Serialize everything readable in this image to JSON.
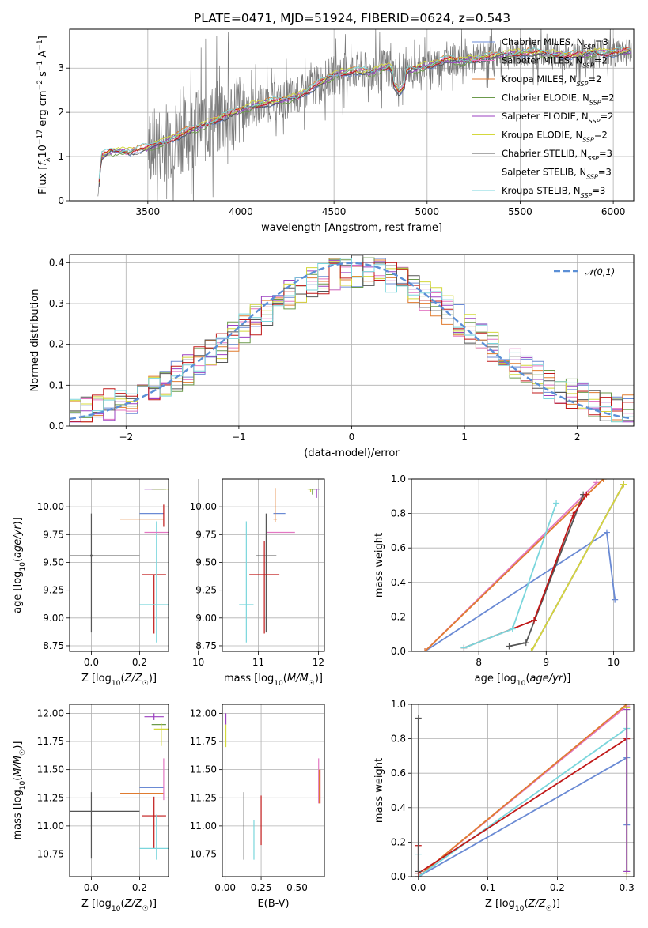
{
  "chart_data": [
    {
      "type": "line",
      "title": "PLATE=0471, MJD=51924, FIBERID=0624, z=0.543",
      "xlabel": "wavelength [Angstrom, rest frame]",
      "ylabel": "Flux [f_λ 10^-17 erg cm^-2 s^-1 A^-1]",
      "xlim": [
        3080,
        6110
      ],
      "ylim": [
        0,
        3.88
      ],
      "xticks": [
        "3500",
        "4000",
        "4500",
        "5000",
        "5500",
        "6000"
      ],
      "yticks": [
        "0",
        "1",
        "2",
        "3"
      ],
      "legend": "top-right",
      "observed": {
        "x": [
          3230,
          3240,
          3250,
          3300,
          3400,
          3500,
          3600,
          3700,
          3800,
          3900,
          4000,
          4100,
          4200,
          4300,
          4400,
          4500,
          4600,
          4700,
          4800,
          4850,
          4900,
          5000,
          5100,
          5200,
          5300,
          5400,
          5500,
          5600,
          5700,
          5800,
          5900,
          6000,
          6100
        ],
        "y": [
          0,
          0.5,
          1.0,
          1.12,
          1.12,
          1.2,
          1.35,
          1.55,
          1.7,
          1.9,
          2.05,
          2.2,
          2.25,
          2.35,
          2.6,
          2.85,
          2.95,
          2.9,
          3.05,
          2.7,
          2.95,
          3.05,
          3.2,
          3.15,
          3.25,
          3.3,
          3.35,
          3.35,
          3.3,
          3.3,
          3.35,
          3.35,
          3.4
        ]
      },
      "series": [
        {
          "name": "Chabrier MILES, N_SSP=3",
          "color": "#6a8ad4"
        },
        {
          "name": "Salpeter MILES, N_SSP=2",
          "color": "#e377c2"
        },
        {
          "name": "Kroupa MILES, N_SSP=2",
          "color": "#e07b2f"
        },
        {
          "name": "Chabrier ELODIE, N_SSP=2",
          "color": "#6b9a4b"
        },
        {
          "name": "Salpeter ELODIE, N_SSP=2",
          "color": "#9b40c0"
        },
        {
          "name": "Kroupa ELODIE, N_SSP=2",
          "color": "#d4d83c"
        },
        {
          "name": "Chabrier STELIB, N_SSP=3",
          "color": "#555555"
        },
        {
          "name": "Salpeter STELIB, N_SSP=3",
          "color": "#c01818"
        },
        {
          "name": "Kroupa STELIB, N_SSP=3",
          "color": "#7ad6dc"
        }
      ]
    },
    {
      "type": "line",
      "xlabel": "(data-model)/error",
      "ylabel": "Normed distribution",
      "xlim": [
        -2.5,
        2.5
      ],
      "ylim": [
        0,
        0.42
      ],
      "xticks": [
        "−2",
        "−1",
        "0",
        "1",
        "2"
      ],
      "yticks": [
        "0.0",
        "0.1",
        "0.2",
        "0.3",
        "0.4"
      ],
      "legend": "top-right",
      "reference_curve": {
        "name": "𝒩(0,1)",
        "color": "#5b8fd6"
      },
      "histogram_bin_width": 0.1
    },
    {
      "type": "scatter",
      "xlabel": "Z [log10(Z/Z☉)]",
      "ylabel": "age  [log10(age/yr)]",
      "xlim": [
        -0.09,
        0.32
      ],
      "ylim": [
        8.7,
        10.25
      ],
      "xticks": [
        "0.0",
        "0.2"
      ],
      "yticks": [
        "8.75",
        "9.00",
        "9.25",
        "9.50",
        "9.75",
        "10.00"
      ],
      "points": [
        {
          "color": "#555555",
          "x": 0.0,
          "xerr": 0.08,
          "y": 9.56,
          "yerr": [
            0.69,
            0.38
          ]
        },
        {
          "color": "#555555",
          "x": 0.0,
          "xerr": 0.0,
          "y": 9.56,
          "yerr": [
            0,
            0
          ]
        },
        {
          "color": "#555555",
          "x": 0.0,
          "xerr": 0.2,
          "y": 9.56,
          "yerr": [
            0,
            0
          ]
        },
        {
          "color": "#c01818",
          "x": 0.26,
          "xerr": 0.05,
          "y": 9.39,
          "yerr": [
            0.53,
            0
          ]
        },
        {
          "color": "#7ad6dc",
          "x": 0.27,
          "xerr": 0.07,
          "y": 9.12,
          "yerr": [
            0.34,
            0.75
          ]
        },
        {
          "color": "#e377c2",
          "x": 0.28,
          "xerr": 0.06,
          "y": 9.77,
          "yerr": [
            0,
            0
          ]
        },
        {
          "color": "#6a8ad4",
          "x": 0.25,
          "xerr": 0.05,
          "y": 9.94,
          "yerr": [
            0,
            0
          ]
        },
        {
          "color": "#e07b2f",
          "x": 0.21,
          "xerr": 0.09,
          "y": 9.89,
          "yerr": [
            0,
            0
          ]
        },
        {
          "color": "#9b40c0",
          "x": 0.26,
          "xerr": 0.04,
          "y": 10.16,
          "yerr": [
            0,
            0
          ]
        },
        {
          "color": "#d4d83c",
          "x": 0.29,
          "xerr": 0.03,
          "y": 10.16,
          "yerr": [
            0,
            0
          ]
        },
        {
          "color": "#6b9a4b",
          "x": 0.28,
          "xerr": 0.03,
          "y": 10.16,
          "yerr": [
            0,
            0
          ]
        },
        {
          "color": "#c01818",
          "x": 0.3,
          "xerr": 0,
          "y": 9.92,
          "yerr": [
            0.1,
            0.1
          ]
        }
      ]
    },
    {
      "type": "scatter",
      "xlabel": "mass [log10(M/M☉)]",
      "xlim": [
        10.4,
        12.1
      ],
      "ylim": [
        8.7,
        10.25
      ],
      "xticks": [
        "10",
        "11",
        "12"
      ],
      "yticks": [
        "8.75",
        "9.00",
        "9.25",
        "9.50",
        "9.75",
        "10.00"
      ],
      "points": [
        {
          "color": "#555555",
          "x": 11.13,
          "xerr": 0.17,
          "y": 9.56,
          "yerr": [
            0.69,
            0.38
          ]
        },
        {
          "color": "#c01818",
          "x": 11.1,
          "xerr": 0.25,
          "y": 9.39,
          "yerr": [
            0.53,
            0.3
          ]
        },
        {
          "color": "#7ad6dc",
          "x": 10.8,
          "xerr": 0.12,
          "y": 9.12,
          "yerr": [
            0.34,
            0.75
          ]
        },
        {
          "color": "#6a8ad4",
          "x": 11.35,
          "xerr": 0.1,
          "y": 9.94,
          "yerr": [
            0,
            0
          ]
        },
        {
          "color": "#e377c2",
          "x": 11.38,
          "xerr": 0.23,
          "y": 9.77,
          "yerr": [
            0,
            0
          ]
        },
        {
          "color": "#e07b2f",
          "x": 11.28,
          "xerr": 0.03,
          "y": 9.89,
          "yerr": [
            0.03,
            0.28
          ]
        },
        {
          "color": "#9b40c0",
          "x": 11.97,
          "xerr": 0.05,
          "y": 10.16,
          "yerr": [
            0.08,
            0
          ]
        },
        {
          "color": "#d4d83c",
          "x": 11.87,
          "xerr": 0.05,
          "y": 10.16,
          "yerr": [
            0.03,
            0
          ]
        },
        {
          "color": "#6b9a4b",
          "x": 11.9,
          "xerr": 0.05,
          "y": 10.16,
          "yerr": [
            0.05,
            0
          ]
        }
      ]
    },
    {
      "type": "line",
      "xlabel": "age  [log10(age/yr)]",
      "ylabel": "mass weight",
      "xlim": [
        7.0,
        10.3
      ],
      "ylim": [
        0,
        1.0
      ],
      "xticks": [
        "8",
        "9",
        "10"
      ],
      "yticks": [
        "0.0",
        "0.2",
        "0.4",
        "0.6",
        "0.8",
        "1.0"
      ],
      "series": [
        {
          "color": "#6a8ad4",
          "x": [
            7.2,
            9.9,
            10.02
          ],
          "y": [
            0.0,
            0.69,
            0.3
          ]
        },
        {
          "color": "#e377c2",
          "x": [
            7.2,
            9.75
          ],
          "y": [
            0.0,
            0.98
          ]
        },
        {
          "color": "#e07b2f",
          "x": [
            7.2,
            9.85
          ],
          "y": [
            0.0,
            1.0
          ]
        },
        {
          "color": "#6b9a4b",
          "x": [
            8.78,
            10.15
          ],
          "y": [
            0.0,
            0.97
          ]
        },
        {
          "color": "#9b40c0",
          "x": [
            8.78,
            10.15
          ],
          "y": [
            0.0,
            0.97
          ]
        },
        {
          "color": "#d4d83c",
          "x": [
            8.78,
            10.15
          ],
          "y": [
            0.0,
            0.97
          ]
        },
        {
          "color": "#555555",
          "x": [
            8.45,
            8.7,
            9.55
          ],
          "y": [
            0.03,
            0.05,
            0.91
          ]
        },
        {
          "color": "#c01818",
          "x": [
            7.78,
            8.82,
            9.4,
            9.6
          ],
          "y": [
            0.02,
            0.18,
            0.79,
            0.91
          ]
        },
        {
          "color": "#7ad6dc",
          "x": [
            7.78,
            8.5,
            9.15
          ],
          "y": [
            0.02,
            0.13,
            0.86
          ]
        }
      ]
    },
    {
      "type": "scatter",
      "xlabel": "Z [log10(Z/Z☉)]",
      "ylabel": "mass [log10(M/M☉)]",
      "xlim": [
        -0.09,
        0.32
      ],
      "ylim": [
        10.55,
        12.08
      ],
      "xticks": [
        "0.0",
        "0.2"
      ],
      "yticks": [
        "10.75",
        "11.00",
        "11.25",
        "11.50",
        "11.75",
        "12.00"
      ],
      "points": [
        {
          "color": "#555555",
          "x": 0.0,
          "xerr": 0.2,
          "y": 11.13,
          "yerr": [
            0.42,
            0.17
          ]
        },
        {
          "color": "#c01818",
          "x": 0.26,
          "xerr": 0.05,
          "y": 11.09,
          "yerr": [
            0.29,
            0.17
          ]
        },
        {
          "color": "#7ad6dc",
          "x": 0.27,
          "xerr": 0.07,
          "y": 10.8,
          "yerr": [
            0.1,
            0.3
          ]
        },
        {
          "color": "#6a8ad4",
          "x": 0.25,
          "xerr": 0.05,
          "y": 11.34,
          "yerr": [
            0,
            0
          ]
        },
        {
          "color": "#e07b2f",
          "x": 0.21,
          "xerr": 0.09,
          "y": 11.29,
          "yerr": [
            0,
            0
          ]
        },
        {
          "color": "#e377c2",
          "x": 0.3,
          "xerr": 0,
          "y": 11.4,
          "yerr": [
            0.17,
            0.2
          ]
        },
        {
          "color": "#9b40c0",
          "x": 0.26,
          "xerr": 0.04,
          "y": 11.97,
          "yerr": [
            0.03,
            0.03
          ]
        },
        {
          "color": "#6b9a4b",
          "x": 0.28,
          "xerr": 0.03,
          "y": 11.9,
          "yerr": [
            0,
            0
          ]
        },
        {
          "color": "#d4d83c",
          "x": 0.29,
          "xerr": 0.03,
          "y": 11.86,
          "yerr": [
            0.15,
            0.05
          ]
        }
      ]
    },
    {
      "type": "scatter",
      "xlabel": "E(B-V)",
      "xlim": [
        -0.02,
        0.69
      ],
      "ylim": [
        10.55,
        12.08
      ],
      "xticks": [
        "0.00",
        "0.25",
        "0.50"
      ],
      "yticks": [
        "10.75",
        "11.00",
        "11.25",
        "11.50",
        "11.75",
        "12.00"
      ],
      "points": [
        {
          "color": "#555555",
          "x": 0.13,
          "y": 11.0,
          "yerr": [
            0.3,
            0.3
          ]
        },
        {
          "color": "#7ad6dc",
          "x": 0.2,
          "y": 10.85,
          "yerr": [
            0.15,
            0.2
          ]
        },
        {
          "color": "#c01818",
          "x": 0.25,
          "y": 11.05,
          "yerr": [
            0.22,
            0.22
          ]
        },
        {
          "color": "#e377c2",
          "x": 0.65,
          "y": 11.4,
          "yerr": [
            0.2,
            0.2
          ]
        },
        {
          "color": "#e07b2f",
          "x": 0.655,
          "y": 11.35,
          "yerr": [
            0.15,
            0.15
          ]
        },
        {
          "color": "#c01818",
          "x": 0.66,
          "y": 11.35,
          "yerr": [
            0.15,
            0.15
          ]
        },
        {
          "color": "#9b40c0",
          "x": 0.005,
          "y": 11.95,
          "yerr": [
            0.05,
            0.05
          ]
        },
        {
          "color": "#d4d83c",
          "x": 0.005,
          "y": 11.8,
          "yerr": [
            0.1,
            0.1
          ]
        }
      ]
    },
    {
      "type": "line",
      "xlabel": "Z [log10(Z/Z☉)]",
      "ylabel": "mass weight",
      "xlim": [
        -0.01,
        0.31
      ],
      "ylim": [
        0,
        1.0
      ],
      "xticks": [
        "0.0",
        "0.1",
        "0.2",
        "0.3"
      ],
      "yticks": [
        "0.0",
        "0.2",
        "0.4",
        "0.6",
        "0.8",
        "1.0"
      ],
      "series": [
        {
          "color": "#6a8ad4",
          "x": [
            0.0,
            0.3,
            0.3
          ],
          "y": [
            0.0,
            0.69,
            0.3
          ]
        },
        {
          "color": "#e377c2",
          "x": [
            0.0,
            0.3
          ],
          "y": [
            0.0,
            0.99
          ]
        },
        {
          "color": "#e07b2f",
          "x": [
            0.0,
            0.3
          ],
          "y": [
            0.0,
            1.0
          ]
        },
        {
          "color": "#7ad6dc",
          "x": [
            0.0,
            0.0,
            0.3
          ],
          "y": [
            0.13,
            0.0,
            0.86
          ]
        },
        {
          "color": "#c01818",
          "x": [
            0.0,
            0.0,
            0.3
          ],
          "y": [
            0.18,
            0.02,
            0.8
          ]
        },
        {
          "color": "#555555",
          "x": [
            0.0,
            0.0
          ],
          "y": [
            0.92,
            0.03
          ]
        },
        {
          "color": "#d4d83c",
          "x": [
            0.3,
            0.3
          ],
          "y": [
            0.98,
            0.02
          ]
        },
        {
          "color": "#6b9a4b",
          "x": [
            0.3,
            0.3
          ],
          "y": [
            0.97,
            0.03
          ]
        },
        {
          "color": "#9b40c0",
          "x": [
            0.3,
            0.3
          ],
          "y": [
            0.97,
            0.03
          ]
        }
      ]
    }
  ]
}
